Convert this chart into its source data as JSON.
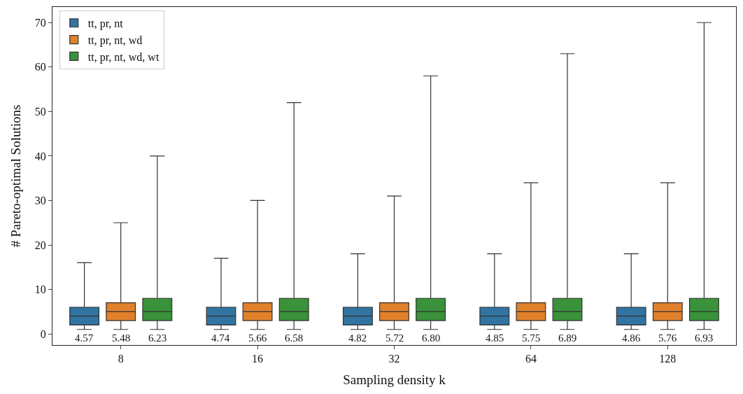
{
  "chart_data": {
    "type": "box",
    "xlabel": "Sampling density k",
    "ylabel": "# Pareto-optimal Solutions",
    "categories": [
      "8",
      "16",
      "32",
      "64",
      "128"
    ],
    "ylim": [
      -2.5,
      73.5
    ],
    "yticks": [
      0,
      10,
      20,
      30,
      40,
      50,
      60,
      70
    ],
    "legend": "top left",
    "annotations": [
      "4.57",
      "5.48",
      "6.23",
      "4.74",
      "5.66",
      "6.58",
      "4.82",
      "5.72",
      "6.80",
      "4.85",
      "5.75",
      "6.89",
      "4.86",
      "5.76",
      "6.93"
    ],
    "series": [
      {
        "name": "tt, pr, nt",
        "color": "#3274a1",
        "boxes": [
          {
            "low": 1,
            "q1": 2,
            "median": 4,
            "q3": 6,
            "high": 16
          },
          {
            "low": 1,
            "q1": 2,
            "median": 4,
            "q3": 6,
            "high": 17
          },
          {
            "low": 1,
            "q1": 2,
            "median": 4,
            "q3": 6,
            "high": 18
          },
          {
            "low": 1,
            "q1": 2,
            "median": 4,
            "q3": 6,
            "high": 18
          },
          {
            "low": 1,
            "q1": 2,
            "median": 4,
            "q3": 6,
            "high": 18
          }
        ]
      },
      {
        "name": "tt, pr, nt, wd",
        "color": "#e1812c",
        "boxes": [
          {
            "low": 1,
            "q1": 3,
            "median": 5,
            "q3": 7,
            "high": 25
          },
          {
            "low": 1,
            "q1": 3,
            "median": 5,
            "q3": 7,
            "high": 30
          },
          {
            "low": 1,
            "q1": 3,
            "median": 5,
            "q3": 7,
            "high": 31
          },
          {
            "low": 1,
            "q1": 3,
            "median": 5,
            "q3": 7,
            "high": 34
          },
          {
            "low": 1,
            "q1": 3,
            "median": 5,
            "q3": 7,
            "high": 34
          }
        ]
      },
      {
        "name": "tt, pr, nt, wd, wt",
        "color": "#3a923a",
        "boxes": [
          {
            "low": 1,
            "q1": 3,
            "median": 5,
            "q3": 8,
            "high": 40
          },
          {
            "low": 1,
            "q1": 3,
            "median": 5,
            "q3": 8,
            "high": 52
          },
          {
            "low": 1,
            "q1": 3,
            "median": 5,
            "q3": 8,
            "high": 58
          },
          {
            "low": 1,
            "q1": 3,
            "median": 5,
            "q3": 8,
            "high": 63
          },
          {
            "low": 1,
            "q1": 3,
            "median": 5,
            "q3": 8,
            "high": 70
          }
        ]
      }
    ]
  }
}
